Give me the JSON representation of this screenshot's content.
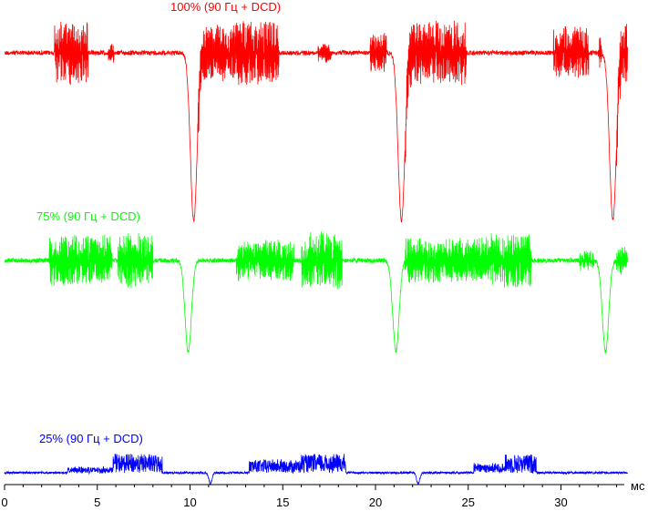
{
  "chart_data": {
    "type": "line",
    "title": "",
    "xlabel": "мс",
    "ylabel": "",
    "xlim": [
      0,
      33.6
    ],
    "x_ticks": [
      0,
      5,
      10,
      15,
      20,
      25,
      30
    ],
    "x_tick_labels": [
      "0",
      "5",
      "10",
      "15",
      "20",
      "25",
      "30"
    ],
    "grid": false,
    "legend": "none",
    "series": [
      {
        "name": "100% (90 Гц + DCD)",
        "color": "#ff0000",
        "baseline": 0.0,
        "segments": [
          {
            "start": 0.0,
            "end": 9.7,
            "burst_groups": [
              [
                2.7,
                4.5,
                1.0
              ],
              [
                5.6,
                5.9,
                0.3
              ]
            ]
          },
          {
            "start": 10.4,
            "end": 20.8,
            "burst_groups": [
              [
                10.4,
                12.5,
                0.9
              ],
              [
                12.5,
                14.8,
                1.0
              ],
              [
                16.9,
                17.6,
                0.3
              ],
              [
                19.7,
                20.6,
                0.6
              ]
            ]
          },
          {
            "start": 21.6,
            "end": 32.2,
            "burst_groups": [
              [
                21.6,
                24.9,
                1.0
              ],
              [
                29.6,
                31.5,
                0.8
              ],
              [
                32.0,
                32.3,
                0.5
              ]
            ]
          },
          {
            "start": 33.0,
            "end": 33.6,
            "burst_groups": [
              [
                33.0,
                33.6,
                1.0
              ]
            ]
          }
        ],
        "dips": [
          {
            "x": 10.2,
            "depth": 1.0
          },
          {
            "x": 21.4,
            "depth": 1.0
          },
          {
            "x": 32.8,
            "depth": 1.0
          }
        ]
      },
      {
        "name": "75% (90 Гц + DCD)",
        "color": "#00ff00",
        "baseline": 0.0,
        "segments": [
          {
            "start": 0.0,
            "end": 9.5,
            "burst_groups": [
              [
                2.4,
                5.8,
                0.9
              ],
              [
                6.1,
                8.0,
                1.0
              ]
            ]
          },
          {
            "start": 10.6,
            "end": 20.6,
            "burst_groups": [
              [
                12.5,
                15.6,
                0.7
              ],
              [
                16.0,
                18.2,
                1.0
              ]
            ]
          },
          {
            "start": 21.6,
            "end": 31.9,
            "burst_groups": [
              [
                21.6,
                26.2,
                0.8
              ],
              [
                26.2,
                28.4,
                1.0
              ],
              [
                31.0,
                31.8,
                0.3
              ]
            ]
          },
          {
            "start": 33.0,
            "end": 33.6,
            "burst_groups": [
              [
                33.0,
                33.6,
                0.5
              ]
            ]
          }
        ],
        "dips": [
          {
            "x": 9.9,
            "depth": 1.0
          },
          {
            "x": 21.1,
            "depth": 1.0
          },
          {
            "x": 32.4,
            "depth": 1.0
          }
        ]
      },
      {
        "name": "25% (90 Гц + DCD)",
        "color": "#0000ff",
        "baseline": 0.0,
        "segments": [
          {
            "start": 0.2,
            "end": 10.8,
            "burst_groups": [
              [
                3.4,
                5.8,
                0.3
              ],
              [
                5.8,
                8.5,
                1.0
              ]
            ]
          },
          {
            "start": 11.4,
            "end": 21.9,
            "burst_groups": [
              [
                13.2,
                16.0,
                0.7
              ],
              [
                16.0,
                18.4,
                1.0
              ]
            ]
          },
          {
            "start": 22.6,
            "end": 33.6,
            "burst_groups": [
              [
                25.3,
                27.0,
                0.5
              ],
              [
                27.0,
                28.7,
                1.0
              ]
            ]
          }
        ],
        "dips": [
          {
            "x": 11.1,
            "depth": 1.0
          },
          {
            "x": 22.3,
            "depth": 1.0
          }
        ]
      }
    ]
  }
}
